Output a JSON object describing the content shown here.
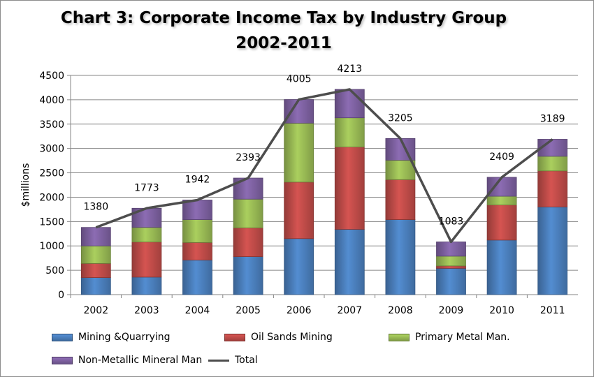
{
  "chart_data": {
    "type": "bar",
    "stacked": true,
    "title": "Chart 3: Corporate Income Tax by Industry Group",
    "subtitle": "2002-2011",
    "ylabel": "$millions",
    "xlabel": "",
    "ylim": [
      0,
      4500
    ],
    "yticks": [
      0,
      500,
      1000,
      1500,
      2000,
      2500,
      3000,
      3500,
      4000,
      4500
    ],
    "grid": true,
    "legend_position": "bottom",
    "categories": [
      "2002",
      "2003",
      "2004",
      "2005",
      "2006",
      "2007",
      "2008",
      "2009",
      "2010",
      "2011"
    ],
    "series": [
      {
        "name": "Mining &Quarrying",
        "color": "#4a7ebb",
        "values": [
          350,
          360,
          710,
          780,
          1150,
          1340,
          1540,
          540,
          1120,
          1800
        ]
      },
      {
        "name": "Oil Sands Mining",
        "color": "#be4b48",
        "values": [
          290,
          720,
          360,
          590,
          1160,
          1690,
          820,
          50,
          720,
          740
        ]
      },
      {
        "name": "Primary Metal Man.",
        "color": "#98b954",
        "values": [
          360,
          300,
          470,
          590,
          1210,
          600,
          400,
          200,
          180,
          300
        ]
      },
      {
        "name": "Non-Metallic Mineral Man",
        "color": "#7d60a0",
        "values": [
          380,
          393,
          402,
          433,
          485,
          583,
          445,
          293,
          389,
          349
        ]
      }
    ],
    "total": {
      "name": "Total",
      "color": "#4d4d4d",
      "type": "line",
      "values": [
        1380,
        1773,
        1942,
        2393,
        4005,
        4213,
        3205,
        1083,
        2409,
        3189
      ]
    }
  }
}
